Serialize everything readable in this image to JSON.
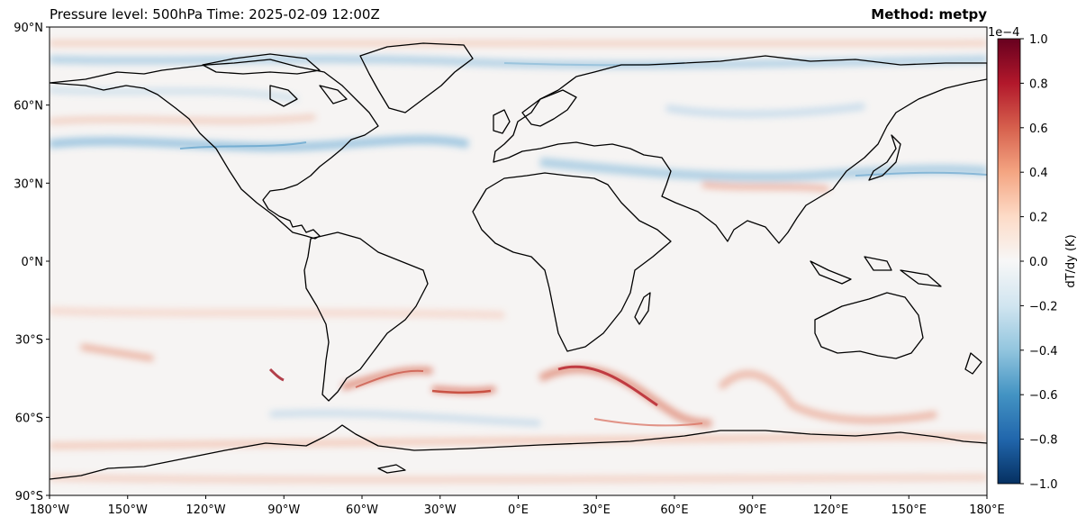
{
  "title_left": "Pressure level: 500hPa Time: 2025-02-09 12:00Z",
  "title_right": "Method: metpy",
  "lat_ticks": [
    "90°N",
    "60°N",
    "30°N",
    "0°N",
    "30°S",
    "60°S",
    "90°S"
  ],
  "lon_ticks": [
    "180°W",
    "150°W",
    "120°W",
    "90°W",
    "60°W",
    "30°W",
    "0°E",
    "30°E",
    "60°E",
    "90°E",
    "120°E",
    "150°E",
    "180°E"
  ],
  "colorbar": {
    "label": "dT/dy (K)",
    "exponent": "1e−4",
    "colormap": "RdBu_r",
    "range": [
      -1.0,
      1.0
    ],
    "ticks": [
      "1.0",
      "0.8",
      "0.6",
      "0.4",
      "0.2",
      "0.0",
      "−0.2",
      "−0.4",
      "−0.6",
      "−0.8",
      "−1.0"
    ],
    "colors": {
      "max": "#67001f",
      "mid": "#f7f7f7",
      "min": "#053061"
    }
  }
}
